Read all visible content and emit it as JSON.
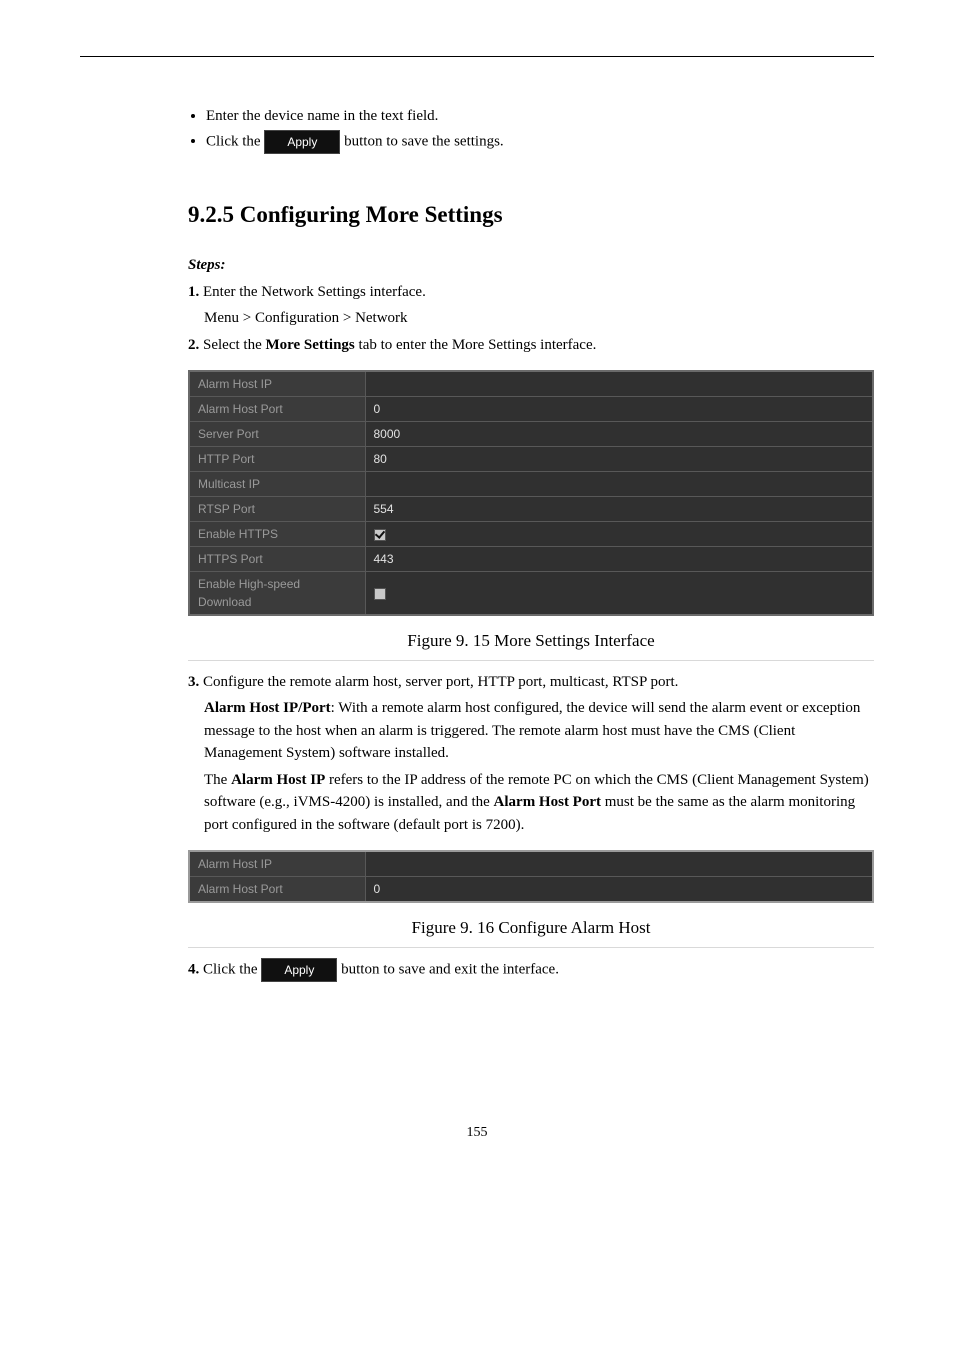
{
  "bullets": {
    "b1": "Enter the device name in the text field.",
    "b2_pre": "Click the ",
    "b2_post": " button to save the settings."
  },
  "apply_label": "Apply",
  "section_title": "9.2.5 Configuring More Settings",
  "steps_heading": "Steps:",
  "step1_label": "1.",
  "step1_text": "Enter the Network Settings interface.",
  "step1_nav": "Menu > Configuration > Network",
  "step2_label": "2.",
  "step2_pre": "Select the ",
  "step2_tab": "More Settings",
  "step2_post": " tab to enter the More Settings interface.",
  "more_settings": {
    "rows": [
      {
        "label": "Alarm Host IP",
        "value": ""
      },
      {
        "label": "Alarm Host Port",
        "value": "0"
      },
      {
        "label": "Server Port",
        "value": "8000"
      },
      {
        "label": "HTTP Port",
        "value": "80"
      },
      {
        "label": "Multicast IP",
        "value": ""
      },
      {
        "label": "RTSP Port",
        "value": "554"
      },
      {
        "label": "Enable HTTPS",
        "type": "checkbox",
        "checked": true
      },
      {
        "label": "HTTPS Port",
        "value": "443"
      },
      {
        "label": "Enable High-speed Download",
        "type": "checkbox",
        "checked": false
      }
    ],
    "label_color": "#9a9a9a",
    "value_color": "#e2e2e2",
    "bg": "#303030",
    "border": "#585858"
  },
  "fig15_caption": "Figure 9. 15 More Settings Interface",
  "step3_label": "3.",
  "step3_text": "Configure the remote alarm host, server port, HTTP port, multicast, RTSP port.",
  "alarm_heading": "Alarm Host IP/Port",
  "alarm_para": ": With a remote alarm host configured, the device will send the alarm event or exception message to the host when an alarm is triggered. The remote alarm host must have the CMS (Client Management System) software installed.",
  "alarm_para2_pre": "The ",
  "alarm_para2_b1": "Alarm Host IP",
  "alarm_para2_mid": " refers to the IP address of the remote PC on which the CMS (Client Management System) software (e.g., iVMS-4200) is installed, and the ",
  "alarm_para2_b2": "Alarm Host Port",
  "alarm_para2_post": " must be the same as the alarm monitoring port configured in the software (default port is 7200).",
  "alarm_table": {
    "rows": [
      {
        "label": "Alarm Host IP",
        "value": ""
      },
      {
        "label": "Alarm Host Port",
        "value": "0"
      }
    ]
  },
  "fig16_caption": "Figure 9. 16    Configure Alarm Host",
  "step4_label": "4.",
  "step4_pre": "Click the ",
  "step4_post": " button to save and exit the interface.",
  "page_number": "155"
}
